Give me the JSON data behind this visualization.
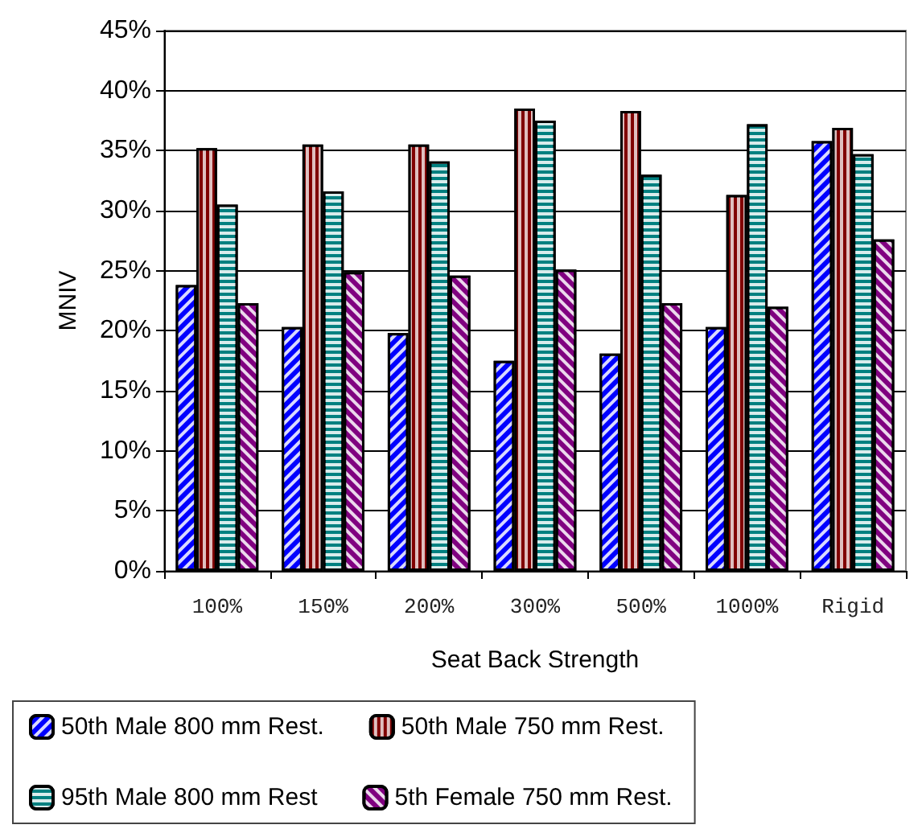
{
  "chart_data": {
    "type": "bar",
    "xlabel": "Seat Back Strength",
    "ylabel": "MNIV",
    "categories": [
      "100%",
      "150%",
      "200%",
      "300%",
      "500%",
      "1000%",
      "Rigid"
    ],
    "series": [
      {
        "name": "50th Male 800 mm Rest.",
        "color": "#0000ff",
        "values": [
          23.8,
          20.3,
          19.8,
          17.5,
          18.1,
          20.3,
          35.8
        ]
      },
      {
        "name": "50th Male 750 mm Rest.",
        "color": "#800000",
        "values": [
          35.2,
          35.5,
          35.5,
          38.5,
          38.3,
          31.3,
          36.9
        ]
      },
      {
        "name": "95th Male 800 mm Rest",
        "color": "#008080",
        "values": [
          30.5,
          31.6,
          34.1,
          37.5,
          33.0,
          37.2,
          34.7
        ]
      },
      {
        "name": "5th Female 750 mm Rest.",
        "color": "#800080",
        "values": [
          22.3,
          24.9,
          24.6,
          25.1,
          22.3,
          22.0,
          27.6
        ]
      }
    ],
    "ylim": [
      0,
      45
    ],
    "yticks": [
      {
        "value": 0,
        "label": "0%"
      },
      {
        "value": 5,
        "label": "5%"
      },
      {
        "value": 10,
        "label": "10%"
      },
      {
        "value": 15,
        "label": "15%"
      },
      {
        "value": 20,
        "label": "20%"
      },
      {
        "value": 25,
        "label": "25%"
      },
      {
        "value": 30,
        "label": "30%"
      },
      {
        "value": 35,
        "label": "35%"
      },
      {
        "value": 40,
        "label": "40%"
      },
      {
        "value": 45,
        "label": "45%"
      }
    ],
    "grid": "y",
    "legend": "bottom"
  }
}
